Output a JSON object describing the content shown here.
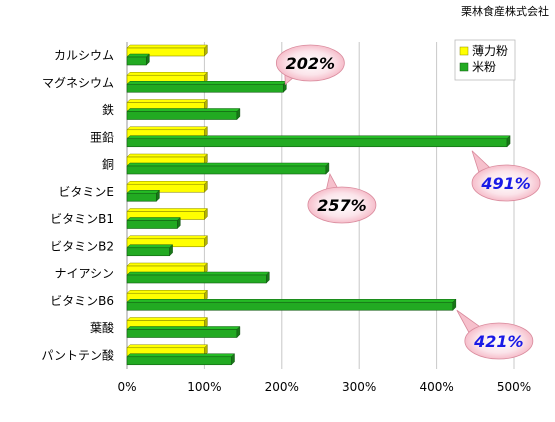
{
  "company_name": "栗林食産株式会社",
  "chart_data": {
    "type": "bar",
    "orientation": "horizontal",
    "categories": [
      "カルシウム",
      "マグネシウム",
      "鉄",
      "亜鉛",
      "銅",
      "ビタミンE",
      "ビタミンB1",
      "ビタミンB2",
      "ナイアシン",
      "ビタミンB6",
      "葉酸",
      "パントテン酸"
    ],
    "series": [
      {
        "name": "薄力粉",
        "color": "#ffff00",
        "values": [
          100,
          100,
          100,
          100,
          100,
          100,
          100,
          100,
          100,
          100,
          100,
          100
        ]
      },
      {
        "name": "米粉",
        "color": "#22aa22",
        "values": [
          25,
          202,
          142,
          491,
          257,
          38,
          65,
          55,
          180,
          421,
          142,
          135
        ]
      }
    ],
    "xlim": [
      0,
      500
    ],
    "x_ticks": [
      0,
      100,
      200,
      300,
      400,
      500
    ],
    "x_tick_labels": [
      "0%",
      "100%",
      "200%",
      "300%",
      "400%",
      "500%"
    ],
    "grid": true,
    "legend_position": "top-right",
    "callouts": [
      {
        "text": "202%",
        "category": "マグネシウム",
        "text_color": "#000000"
      },
      {
        "text": "257%",
        "category": "銅",
        "text_color": "#000000"
      },
      {
        "text": "491%",
        "category": "亜鉛",
        "text_color": "#1a1ae6"
      },
      {
        "text": "421%",
        "category": "ビタミンB6",
        "text_color": "#1a1ae6"
      }
    ]
  }
}
